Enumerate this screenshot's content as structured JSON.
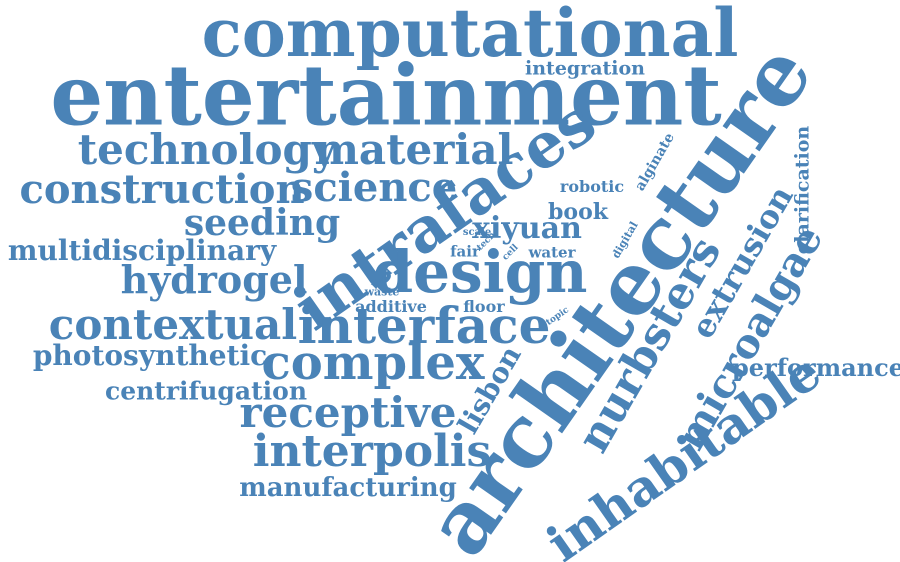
{
  "color": "#4a83b7",
  "words": {
    "computational": "computational",
    "entertainment": "entertainment",
    "integration": "integration",
    "technology": "technology",
    "material": "material",
    "construction": "construction",
    "science": "science",
    "intrafaces": "intrafaces",
    "architecture": "architecture",
    "alginate": "alginate",
    "clarification": "clarification",
    "robotic": "robotic",
    "book": "book",
    "seeding": "seeding",
    "xiyuan": "xiyuan",
    "digital": "digital",
    "multidisciplinary": "multidisciplinary",
    "scale": "scale",
    "tech": "tech",
    "fair": "fair",
    "cell": "cell",
    "water": "water",
    "design": "design",
    "hydrogel": "hydrogel",
    "bead": "bead",
    "waste": "waste",
    "extrusion": "extrusion",
    "microalgae": "microalgae",
    "nurbsters": "nurbsters",
    "additive": "additive",
    "floor": "floor",
    "topic": "topic",
    "contextual": "contextual",
    "interface": "interface",
    "photosynthetic": "photosynthetic",
    "complex": "complex",
    "lisbon": "lisbon",
    "performance": "performance",
    "centrifugation": "centrifugation",
    "receptive": "receptive",
    "interpolis": "interpolis",
    "inhabitable": "inhabitable",
    "manufacturing": "manufacturing"
  }
}
